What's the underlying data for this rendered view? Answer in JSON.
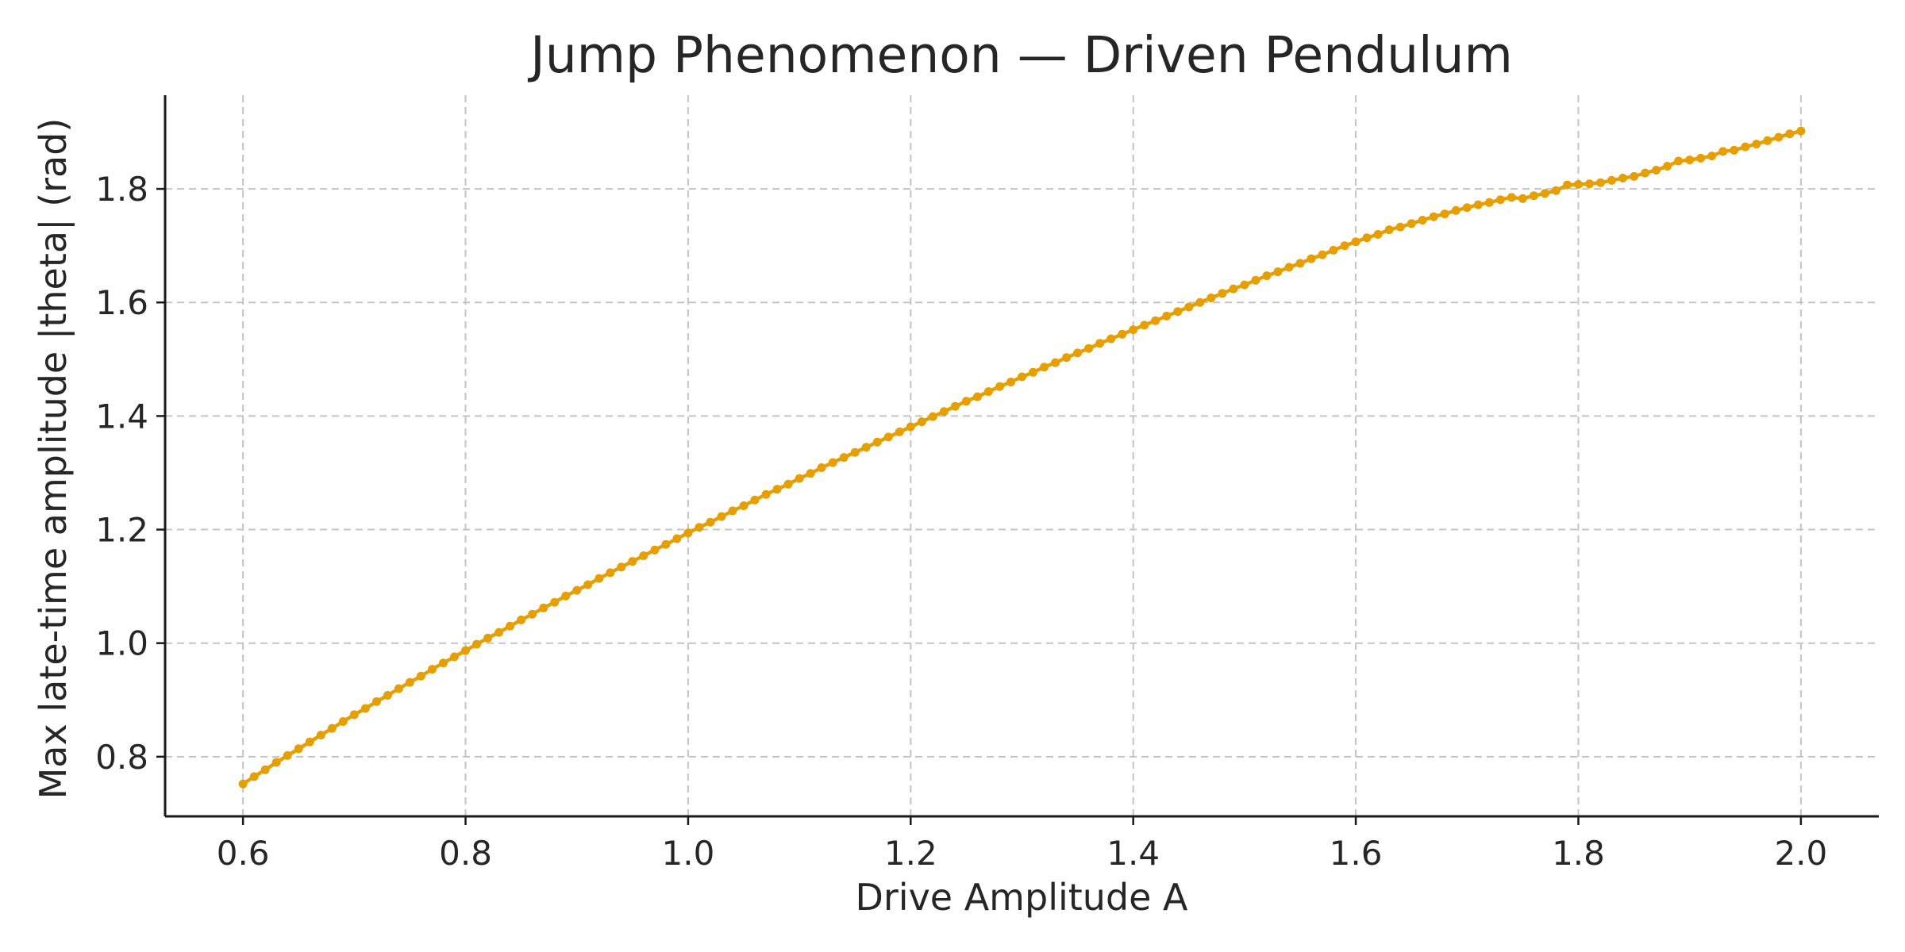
{
  "chart_data": {
    "type": "line",
    "title": "Jump Phenomenon — Driven Pendulum",
    "xlabel": "Drive Amplitude A",
    "ylabel": "Max late-time amplitude |theta| (rad)",
    "xlim": [
      0.53,
      2.07
    ],
    "ylim": [
      0.695,
      1.965
    ],
    "xticks": [
      0.6,
      0.8,
      1.0,
      1.2,
      1.4,
      1.6,
      1.8,
      2.0
    ],
    "xtick_labels": [
      "0.6",
      "0.8",
      "1.0",
      "1.2",
      "1.4",
      "1.6",
      "1.8",
      "2.0"
    ],
    "yticks": [
      0.8,
      1.0,
      1.2,
      1.4,
      1.6,
      1.8
    ],
    "ytick_labels": [
      "0.8",
      "1.0",
      "1.2",
      "1.4",
      "1.6",
      "1.8"
    ],
    "grid": true,
    "legend": false,
    "series": [
      {
        "color": "#E69F00",
        "marker": "circle",
        "x": [
          0.6,
          0.61,
          0.62,
          0.63,
          0.64,
          0.65,
          0.66,
          0.67,
          0.68,
          0.69,
          0.7,
          0.71,
          0.72,
          0.73,
          0.74,
          0.75,
          0.76,
          0.77,
          0.78,
          0.79,
          0.8,
          0.81,
          0.82,
          0.83,
          0.84,
          0.85,
          0.86,
          0.87,
          0.88,
          0.89,
          0.9,
          0.91,
          0.92,
          0.93,
          0.94,
          0.95,
          0.96,
          0.97,
          0.98,
          0.99,
          1.0,
          1.01,
          1.02,
          1.03,
          1.04,
          1.05,
          1.06,
          1.07,
          1.08,
          1.09,
          1.1,
          1.11,
          1.12,
          1.13,
          1.14,
          1.15,
          1.16,
          1.17,
          1.18,
          1.19,
          1.2,
          1.21,
          1.22,
          1.23,
          1.24,
          1.25,
          1.26,
          1.27,
          1.28,
          1.29,
          1.3,
          1.31,
          1.32,
          1.33,
          1.34,
          1.35,
          1.36,
          1.37,
          1.38,
          1.39,
          1.4,
          1.41,
          1.42,
          1.43,
          1.44,
          1.45,
          1.46,
          1.47,
          1.48,
          1.49,
          1.5,
          1.51,
          1.52,
          1.53,
          1.54,
          1.55,
          1.56,
          1.57,
          1.58,
          1.59,
          1.6,
          1.61,
          1.62,
          1.63,
          1.64,
          1.65,
          1.66,
          1.67,
          1.68,
          1.69,
          1.7,
          1.71,
          1.72,
          1.73,
          1.74,
          1.75,
          1.76,
          1.77,
          1.78,
          1.79,
          1.8,
          1.81,
          1.82,
          1.83,
          1.84,
          1.85,
          1.86,
          1.87,
          1.88,
          1.89,
          1.9,
          1.91,
          1.92,
          1.93,
          1.94,
          1.95,
          1.96,
          1.97,
          1.98,
          1.99,
          2.0
        ],
        "y": [
          0.752,
          0.765,
          0.777,
          0.79,
          0.802,
          0.814,
          0.826,
          0.838,
          0.85,
          0.862,
          0.874,
          0.885,
          0.897,
          0.908,
          0.92,
          0.931,
          0.942,
          0.954,
          0.965,
          0.976,
          0.987,
          0.998,
          1.009,
          1.019,
          1.03,
          1.041,
          1.051,
          1.062,
          1.072,
          1.083,
          1.093,
          1.103,
          1.114,
          1.124,
          1.134,
          1.144,
          1.154,
          1.164,
          1.174,
          1.184,
          1.194,
          1.204,
          1.213,
          1.223,
          1.233,
          1.242,
          1.252,
          1.262,
          1.271,
          1.28,
          1.29,
          1.299,
          1.309,
          1.318,
          1.327,
          1.336,
          1.345,
          1.354,
          1.363,
          1.372,
          1.381,
          1.39,
          1.399,
          1.408,
          1.417,
          1.426,
          1.434,
          1.443,
          1.452,
          1.46,
          1.469,
          1.477,
          1.486,
          1.494,
          1.503,
          1.511,
          1.519,
          1.528,
          1.536,
          1.544,
          1.552,
          1.56,
          1.568,
          1.576,
          1.584,
          1.592,
          1.6,
          1.608,
          1.616,
          1.624,
          1.631,
          1.639,
          1.647,
          1.654,
          1.662,
          1.669,
          1.677,
          1.684,
          1.692,
          1.7,
          1.707,
          1.714,
          1.72,
          1.728,
          1.733,
          1.739,
          1.745,
          1.751,
          1.756,
          1.762,
          1.767,
          1.772,
          1.776,
          1.781,
          1.785,
          1.783,
          1.788,
          1.792,
          1.797,
          1.807,
          1.808,
          1.809,
          1.811,
          1.815,
          1.819,
          1.822,
          1.828,
          1.833,
          1.84,
          1.849,
          1.851,
          1.854,
          1.858,
          1.866,
          1.868,
          1.874,
          1.879,
          1.885,
          1.891,
          1.897,
          1.902
        ]
      }
    ]
  }
}
